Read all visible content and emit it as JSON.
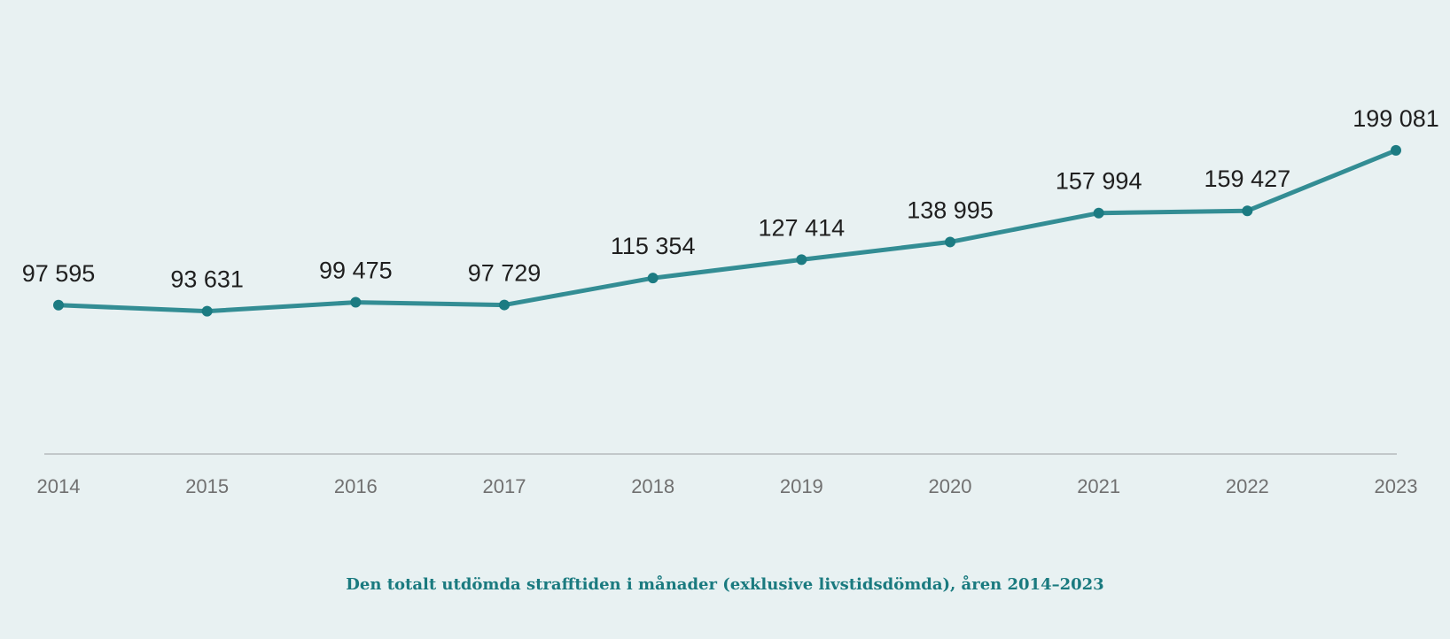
{
  "chart_data": {
    "type": "line",
    "title": "Den totalt utdömda strafftiden i månader (exklusive livstidsdömda), åren 2014–2023",
    "xlabel": "",
    "ylabel": "",
    "categories": [
      "2014",
      "2015",
      "2016",
      "2017",
      "2018",
      "2019",
      "2020",
      "2021",
      "2022",
      "2023"
    ],
    "series": [
      {
        "values": [
          97595,
          93631,
          99475,
          97729,
          115354,
          127414,
          138995,
          157994,
          159427,
          199081
        ],
        "labels": [
          "97 595",
          "93 631",
          "99 475",
          "97 729",
          "115 354",
          "127 414",
          "138 995",
          "157 994",
          "159 427",
          "199 081"
        ]
      }
    ],
    "ylim": [
      0,
      300000
    ],
    "grid": false,
    "legend": "none",
    "colors": {
      "line": "#338d94",
      "marker": "#1c7b82",
      "title": "#1a7a7f",
      "background": "#e8f1f2",
      "axis": "#c2c8ca"
    }
  }
}
